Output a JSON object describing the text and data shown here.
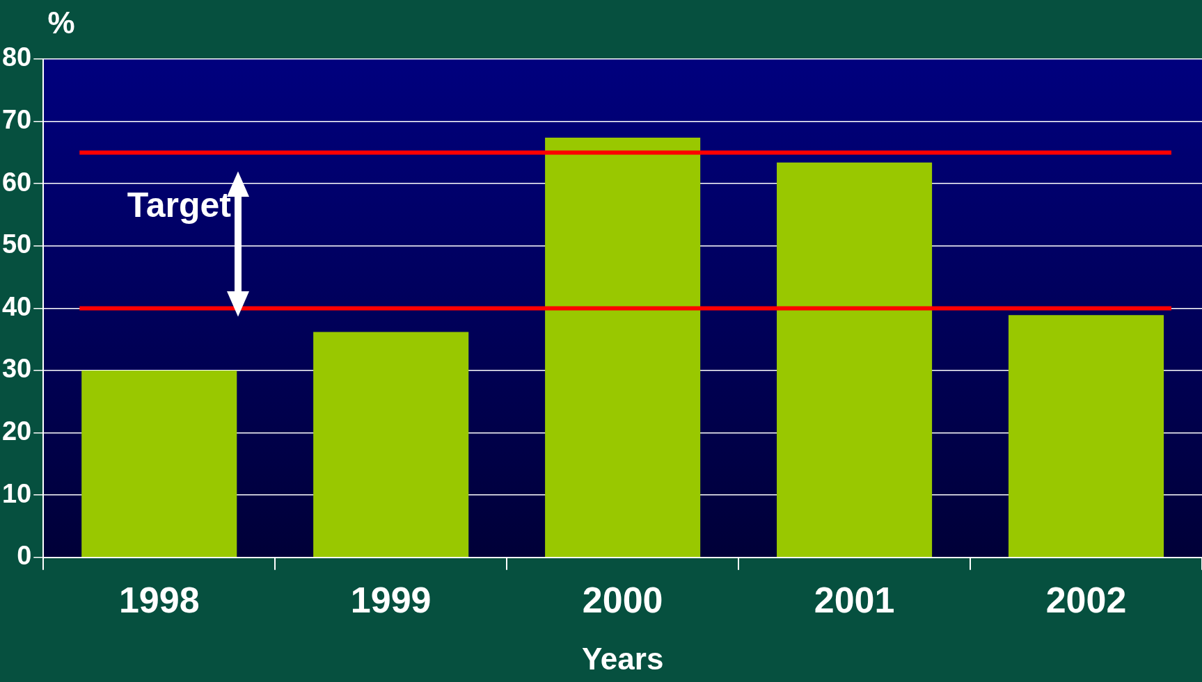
{
  "chart_data": {
    "type": "bar",
    "ylabel": "%",
    "xlabel": "Years",
    "categories": [
      "1998",
      "1999",
      "2000",
      "2001",
      "2002"
    ],
    "values": [
      30,
      36.2,
      67.4,
      63.4,
      38.9
    ],
    "color": "#99c800",
    "ylim": [
      0,
      80
    ],
    "yticks": [
      0,
      10,
      20,
      30,
      40,
      50,
      60,
      70,
      80
    ],
    "grid": "y",
    "ref_lines": [
      {
        "axis": "y",
        "value": 65,
        "color": "#ff0000"
      },
      {
        "axis": "y",
        "value": 40,
        "color": "#ff0000"
      }
    ],
    "annotations": [
      "Target"
    ]
  }
}
